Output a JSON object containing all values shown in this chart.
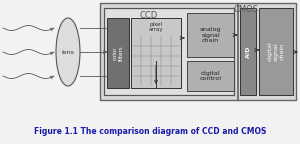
{
  "title": "Figure 1.1 The comparison diagram of CCD and CMOS",
  "title_color": "#1a1aaa",
  "title_fontsize": 5.5,
  "fig_bg": "#f2f2f2",
  "ccd_label": "CCD",
  "cmos_label": "CMOS",
  "lens_label": "lens",
  "color_filters_label": "color\nfilters",
  "pixel_array_label": "pixel\narray",
  "analog_signal_label": "analog\nsignal\nchain",
  "digital_control_label": "digital\ncontrol",
  "ad_label": "A/D",
  "digital_signal_label": "digital\nsignal\nchain",
  "box_colors": {
    "color_filters": "#707070",
    "color_filters_grad": "#909090",
    "pixel_array": "#c8c8c8",
    "analog_signal": "#b0b0b0",
    "digital_control": "#b0b0b0",
    "ad": "#888888",
    "digital_signal": "#999999",
    "ccd_bg": "#e0e0e0",
    "cmos_bg": "#d8d8d8",
    "outer_bg": "#cccccc"
  },
  "arrow_color": "#333333",
  "wave_color": "#555555",
  "lens_color": "#dddddd",
  "label_color_dark": "#222222",
  "label_color_light": "#ffffff"
}
